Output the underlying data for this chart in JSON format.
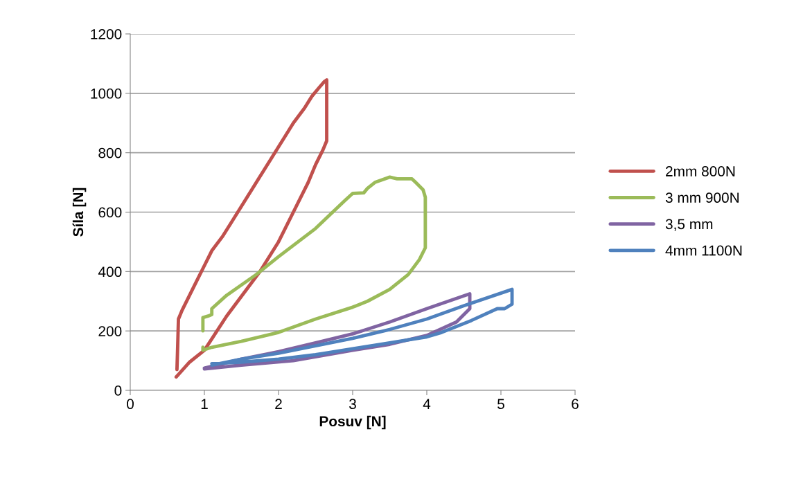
{
  "chart_data": {
    "type": "line",
    "xlabel": "Posuv [N]",
    "ylabel": "Síla [N]",
    "xlim": [
      0,
      6
    ],
    "xticks": [
      0,
      1,
      2,
      3,
      4,
      5,
      6
    ],
    "ylim": [
      0,
      1200
    ],
    "yticks": [
      0,
      200,
      400,
      600,
      800,
      1000,
      1200
    ],
    "grid": "y",
    "legend": "right",
    "marker": "none",
    "line_style": "solid",
    "series": [
      {
        "name": "2mm 800N",
        "color": "#c0504d",
        "x": [
          0.62,
          0.8,
          1.0,
          1.3,
          1.6,
          1.75,
          2.0,
          2.2,
          2.4,
          2.5,
          2.6,
          2.65,
          2.65,
          2.62,
          2.55,
          2.45,
          2.35,
          2.2,
          2.1,
          1.95,
          1.8,
          1.65,
          1.5,
          1.35,
          1.25,
          1.1,
          1.0,
          0.9,
          0.8,
          0.7,
          0.65,
          0.64,
          0.63
        ],
        "values": [
          45,
          95,
          135,
          250,
          350,
          400,
          500,
          600,
          700,
          760,
          810,
          840,
          1045,
          1040,
          1020,
          990,
          950,
          900,
          860,
          800,
          740,
          680,
          620,
          560,
          520,
          470,
          420,
          370,
          320,
          270,
          240,
          150,
          70
        ]
      },
      {
        "name": "3 mm 900N",
        "color": "#9bbb59",
        "x": [
          0.98,
          0.98,
          1.05,
          1.1,
          1.1,
          1.3,
          1.7,
          2.0,
          2.5,
          2.9,
          3.0,
          3.15,
          3.2,
          3.3,
          3.5,
          3.6,
          3.8,
          3.85,
          3.95,
          3.98,
          3.98,
          3.9,
          3.75,
          3.5,
          3.2,
          3.05,
          3.0,
          2.5,
          2.0,
          1.5,
          1.1,
          0.98,
          0.98
        ],
        "values": [
          200,
          245,
          250,
          255,
          275,
          320,
          390,
          450,
          545,
          640,
          663,
          665,
          680,
          700,
          718,
          712,
          712,
          700,
          675,
          650,
          480,
          440,
          390,
          340,
          300,
          285,
          280,
          240,
          195,
          165,
          145,
          135,
          145
        ]
      },
      {
        "name": "3,5 mm",
        "color": "#8064a2",
        "x": [
          1.0,
          1.5,
          2.0,
          2.5,
          3.0,
          3.5,
          4.0,
          4.58,
          4.58,
          4.4,
          4.0,
          3.5,
          3.0,
          2.2,
          1.5,
          1.0
        ],
        "values": [
          75,
          105,
          130,
          160,
          190,
          230,
          275,
          325,
          275,
          230,
          185,
          155,
          135,
          100,
          85,
          72
        ]
      },
      {
        "name": "4mm 1100N",
        "color": "#4f81bd",
        "x": [
          1.1,
          1.5,
          2.0,
          2.5,
          3.0,
          3.5,
          4.0,
          4.5,
          5.15,
          5.15,
          5.05,
          4.95,
          4.6,
          4.2,
          4.0,
          3.5,
          3.0,
          2.5,
          2.0,
          1.5,
          1.1
        ],
        "values": [
          85,
          105,
          125,
          150,
          175,
          205,
          240,
          285,
          340,
          290,
          275,
          275,
          235,
          195,
          180,
          160,
          140,
          120,
          105,
          95,
          90
        ]
      }
    ]
  }
}
